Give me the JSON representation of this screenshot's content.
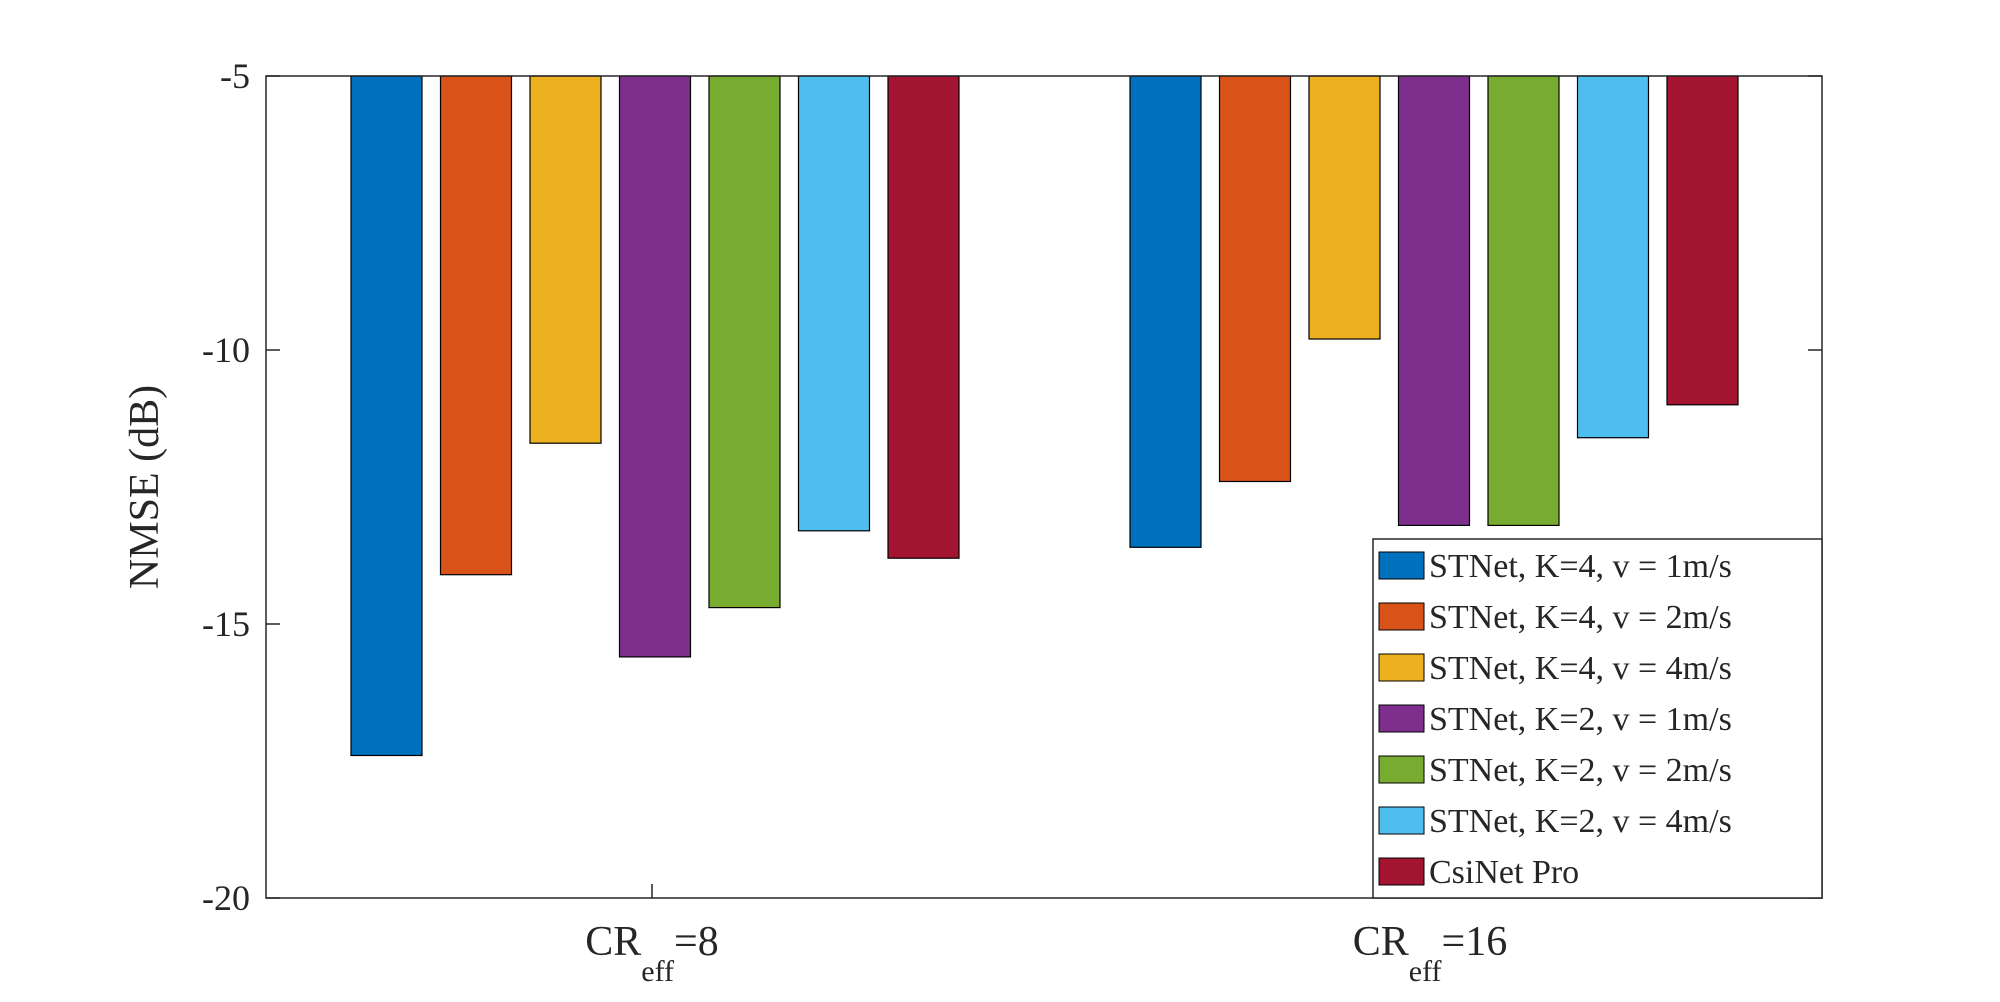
{
  "chart_data": {
    "type": "bar",
    "title": "",
    "xlabel": "",
    "ylabel": "NMSE (dB)",
    "ylim": [
      -20,
      -5
    ],
    "yticks": [
      -5,
      -10,
      -15,
      -20
    ],
    "grid": false,
    "legend_position": "bottom-right",
    "baseline": -5,
    "categories": [
      {
        "main": "CR",
        "sub": "eff",
        "suffix": "=8"
      },
      {
        "main": "CR",
        "sub": "eff",
        "suffix": "=16"
      }
    ],
    "series": [
      {
        "name": "STNet, K=4, v = 1m/s",
        "color": "#0072BD",
        "values": [
          -17.4,
          -13.6
        ]
      },
      {
        "name": "STNet, K=4, v = 2m/s",
        "color": "#D95319",
        "values": [
          -14.1,
          -12.4
        ]
      },
      {
        "name": "STNet, K=4, v = 4m/s",
        "color": "#EDB120",
        "values": [
          -11.7,
          -9.8
        ]
      },
      {
        "name": "STNet, K=2, v = 1m/s",
        "color": "#7E2F8E",
        "values": [
          -15.6,
          -13.2
        ]
      },
      {
        "name": "STNet, K=2, v = 2m/s",
        "color": "#77AC30",
        "values": [
          -14.7,
          -13.2
        ]
      },
      {
        "name": "STNet, K=2, v = 4m/s",
        "color": "#4DBEEE",
        "values": [
          -13.3,
          -11.6
        ]
      },
      {
        "name": "CsiNet Pro",
        "color": "#A2142F",
        "values": [
          -13.8,
          -11.0
        ]
      }
    ]
  }
}
